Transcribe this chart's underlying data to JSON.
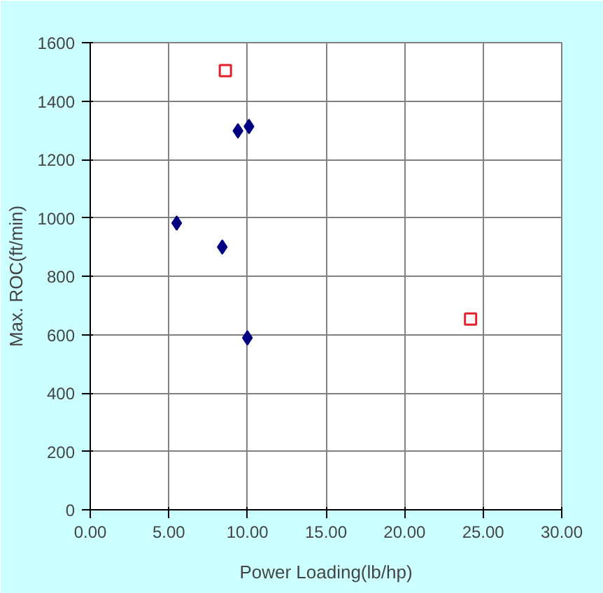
{
  "chart_data": {
    "type": "scatter",
    "xlabel": "Power Loading(lb/hp)",
    "ylabel": "Max. ROC(ft/min)",
    "xlim": [
      0,
      30
    ],
    "ylim": [
      0,
      1600
    ],
    "xticks": [
      {
        "value": 0,
        "label": "0.00"
      },
      {
        "value": 5,
        "label": "5.00"
      },
      {
        "value": 10,
        "label": "10.00"
      },
      {
        "value": 15,
        "label": "15.00"
      },
      {
        "value": 20,
        "label": "20.00"
      },
      {
        "value": 25,
        "label": "25.00"
      },
      {
        "value": 30,
        "label": "30.00"
      }
    ],
    "yticks": [
      0,
      200,
      400,
      600,
      800,
      1000,
      1200,
      1400,
      1600
    ],
    "grid": true,
    "series": [
      {
        "color": "#000080",
        "marker": "diamond",
        "x": [
          9.4,
          10.1,
          5.5,
          8.4,
          10.0
        ],
        "values": [
          1298,
          1313,
          982,
          900,
          589
        ]
      },
      {
        "color": "#e8202a",
        "marker": "square",
        "x": [
          8.6,
          24.2
        ],
        "values": [
          1504,
          653
        ]
      }
    ]
  }
}
